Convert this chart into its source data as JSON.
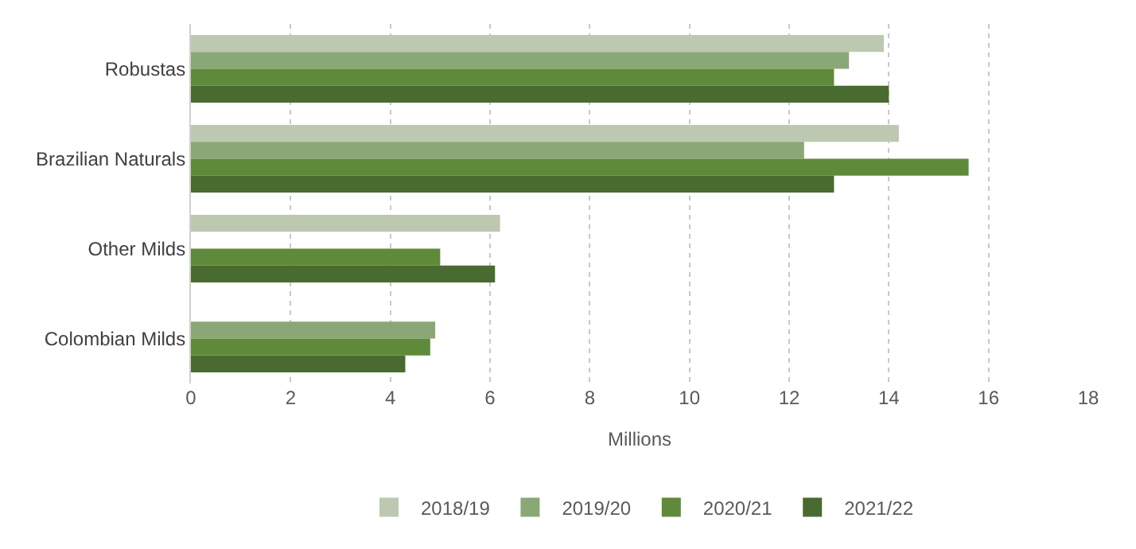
{
  "chart_data": {
    "type": "bar",
    "orientation": "horizontal",
    "xlabel": "Millions",
    "categories": [
      "Robustas",
      "Brazilian Naturals",
      "Other Milds",
      "Colombian Milds"
    ],
    "series": [
      {
        "name": "2018/19",
        "color": "#bcc8b0",
        "values": [
          13.9,
          14.2,
          6.2,
          null
        ]
      },
      {
        "name": "2019/20",
        "color": "#8aa876",
        "values": [
          13.2,
          12.3,
          null,
          4.9
        ]
      },
      {
        "name": "2020/21",
        "color": "#5f8a3a",
        "values": [
          12.9,
          15.6,
          5.0,
          4.8
        ]
      },
      {
        "name": "2021/22",
        "color": "#4a6b2f",
        "values": [
          14.0,
          12.9,
          6.1,
          4.3
        ]
      }
    ],
    "xlim": [
      0,
      18
    ],
    "xticks": [
      0,
      2,
      4,
      6,
      8,
      10,
      12,
      14,
      16,
      18
    ],
    "grid": "x",
    "legend": "bottom"
  }
}
